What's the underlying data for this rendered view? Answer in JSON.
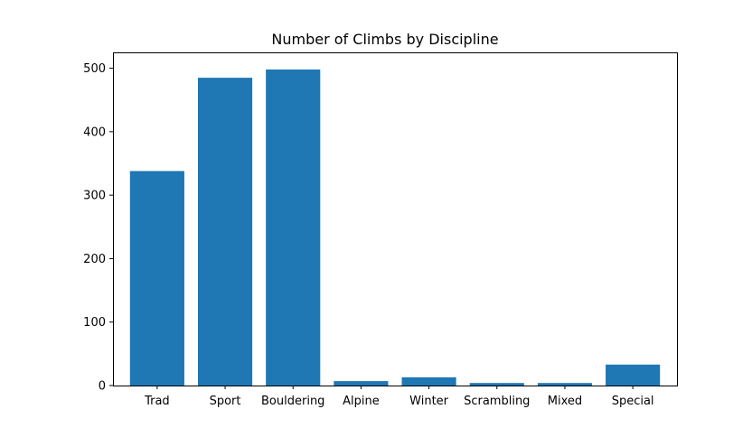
{
  "chart_data": {
    "type": "bar",
    "title": "Number of Climbs by Discipline",
    "xlabel": "",
    "ylabel": "",
    "categories": [
      "Trad",
      "Sport",
      "Bouldering",
      "Alpine",
      "Winter",
      "Scrambling",
      "Mixed",
      "Special"
    ],
    "values": [
      338,
      485,
      498,
      7,
      13,
      4,
      4,
      33
    ],
    "ylim": [
      0,
      525
    ],
    "yticks": [
      0,
      100,
      200,
      300,
      400,
      500
    ],
    "ytick_labels": [
      "0",
      "100",
      "200",
      "300",
      "400",
      "500"
    ],
    "grid": false,
    "legend": "none",
    "colors": {
      "bar": "#1f77b4",
      "axis": "#000000",
      "background": "#ffffff"
    }
  }
}
